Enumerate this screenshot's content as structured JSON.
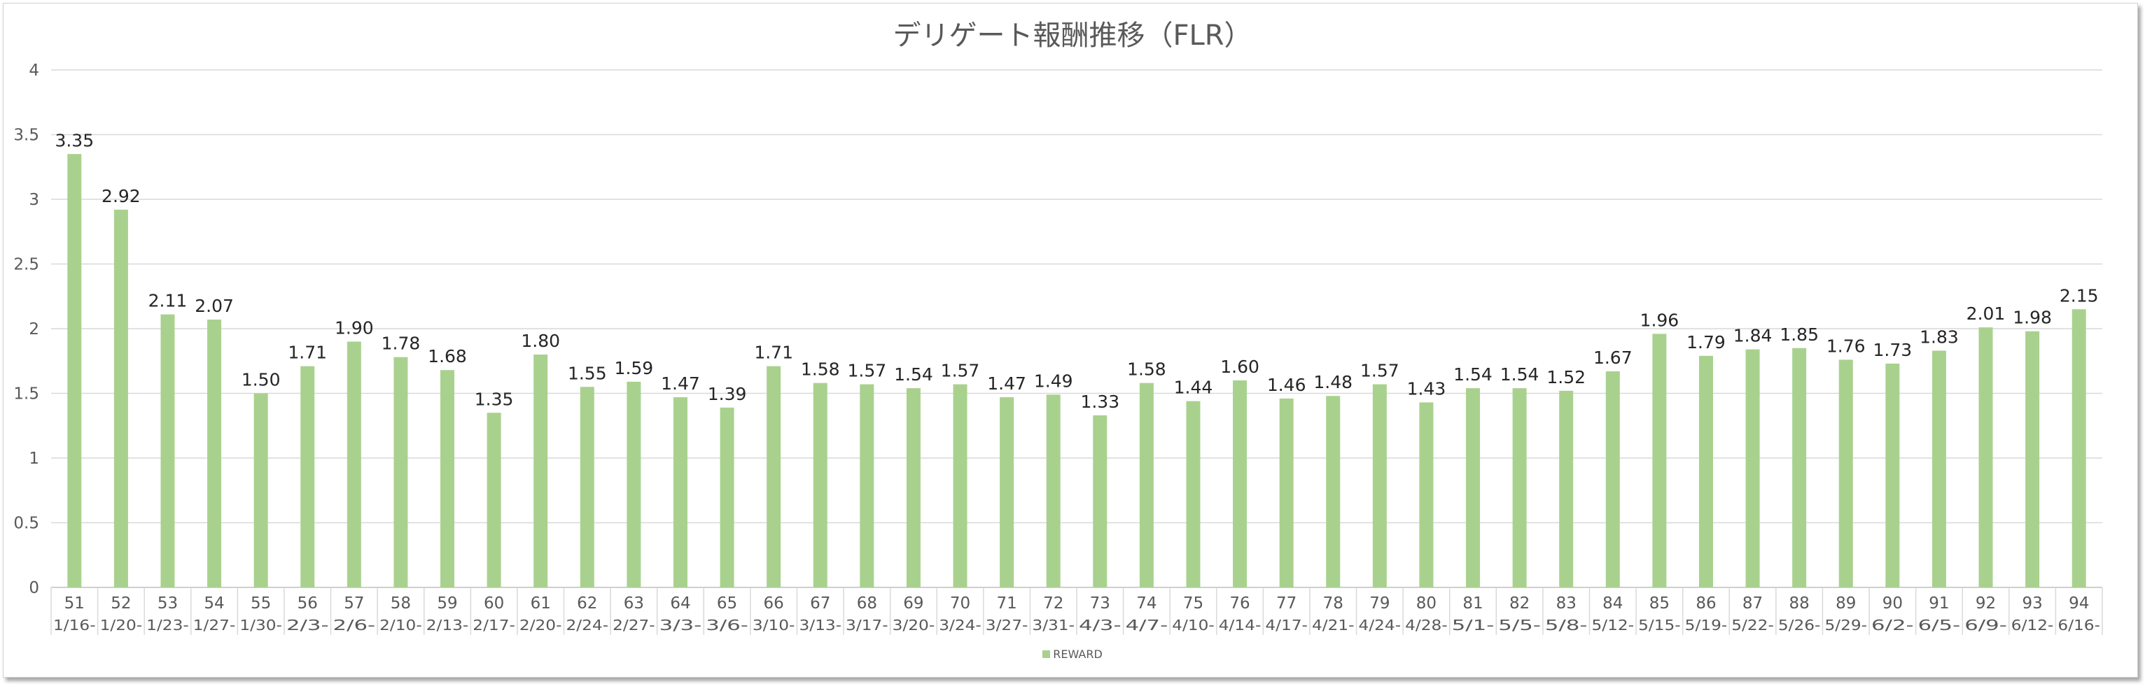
{
  "chart_data": {
    "type": "bar",
    "title": "デリゲート報酬推移（FLR）",
    "xlabel": "",
    "ylabel": "",
    "ylim": [
      0,
      4
    ],
    "yticks": [
      "0",
      "0.5",
      "1",
      "1.5",
      "2",
      "2.5",
      "3",
      "3.5",
      "4"
    ],
    "grid": true,
    "legend_position": "bottom",
    "bar_color": "#a9d18e",
    "categories": [
      {
        "epoch": "51",
        "date": "1/16-"
      },
      {
        "epoch": "52",
        "date": "1/20-"
      },
      {
        "epoch": "53",
        "date": "1/23-"
      },
      {
        "epoch": "54",
        "date": "1/27-"
      },
      {
        "epoch": "55",
        "date": "1/30-"
      },
      {
        "epoch": "56",
        "date": "2/3-"
      },
      {
        "epoch": "57",
        "date": "2/6-"
      },
      {
        "epoch": "58",
        "date": "2/10-"
      },
      {
        "epoch": "59",
        "date": "2/13-"
      },
      {
        "epoch": "60",
        "date": "2/17-"
      },
      {
        "epoch": "61",
        "date": "2/20-"
      },
      {
        "epoch": "62",
        "date": "2/24-"
      },
      {
        "epoch": "63",
        "date": "2/27-"
      },
      {
        "epoch": "64",
        "date": "3/3-"
      },
      {
        "epoch": "65",
        "date": "3/6-"
      },
      {
        "epoch": "66",
        "date": "3/10-"
      },
      {
        "epoch": "67",
        "date": "3/13-"
      },
      {
        "epoch": "68",
        "date": "3/17-"
      },
      {
        "epoch": "69",
        "date": "3/20-"
      },
      {
        "epoch": "70",
        "date": "3/24-"
      },
      {
        "epoch": "71",
        "date": "3/27-"
      },
      {
        "epoch": "72",
        "date": "3/31-"
      },
      {
        "epoch": "73",
        "date": "4/3-"
      },
      {
        "epoch": "74",
        "date": "4/7-"
      },
      {
        "epoch": "75",
        "date": "4/10-"
      },
      {
        "epoch": "76",
        "date": "4/14-"
      },
      {
        "epoch": "77",
        "date": "4/17-"
      },
      {
        "epoch": "78",
        "date": "4/21-"
      },
      {
        "epoch": "79",
        "date": "4/24-"
      },
      {
        "epoch": "80",
        "date": "4/28-"
      },
      {
        "epoch": "81",
        "date": "5/1-"
      },
      {
        "epoch": "82",
        "date": "5/5-"
      },
      {
        "epoch": "83",
        "date": "5/8-"
      },
      {
        "epoch": "84",
        "date": "5/12-"
      },
      {
        "epoch": "85",
        "date": "5/15-"
      },
      {
        "epoch": "86",
        "date": "5/19-"
      },
      {
        "epoch": "87",
        "date": "5/22-"
      },
      {
        "epoch": "88",
        "date": "5/26-"
      },
      {
        "epoch": "89",
        "date": "5/29-"
      },
      {
        "epoch": "90",
        "date": "6/2-"
      },
      {
        "epoch": "91",
        "date": "6/5-"
      },
      {
        "epoch": "92",
        "date": "6/9-"
      },
      {
        "epoch": "93",
        "date": "6/12-"
      },
      {
        "epoch": "94",
        "date": "6/16-"
      }
    ],
    "series": [
      {
        "name": "REWARD",
        "values": [
          3.35,
          2.92,
          2.11,
          2.07,
          1.5,
          1.71,
          1.9,
          1.78,
          1.68,
          1.35,
          1.8,
          1.55,
          1.59,
          1.47,
          1.39,
          1.71,
          1.58,
          1.57,
          1.54,
          1.57,
          1.47,
          1.49,
          1.33,
          1.58,
          1.44,
          1.6,
          1.46,
          1.48,
          1.57,
          1.43,
          1.54,
          1.54,
          1.52,
          1.67,
          1.96,
          1.79,
          1.84,
          1.85,
          1.76,
          1.73,
          1.83,
          2.01,
          1.98,
          2.15
        ],
        "data_labels": [
          "3.35",
          "2.92",
          "2.11",
          "2.07",
          "1.50",
          "1.71",
          "1.90",
          "1.78",
          "1.68",
          "1.35",
          "1.80",
          "1.55",
          "1.59",
          "1.47",
          "1.39",
          "1.71",
          "1.58",
          "1.57",
          "1.54",
          "1.57",
          "1.47",
          "1.49",
          "1.33",
          "1.58",
          "1.44",
          "1.60",
          "1.46",
          "1.48",
          "1.57",
          "1.43",
          "1.54",
          "1.54",
          "1.52",
          "1.67",
          "1.96",
          "1.79",
          "1.84",
          "1.85",
          "1.76",
          "1.73",
          "1.83",
          "2.01",
          "1.98",
          "2.15"
        ]
      }
    ]
  }
}
